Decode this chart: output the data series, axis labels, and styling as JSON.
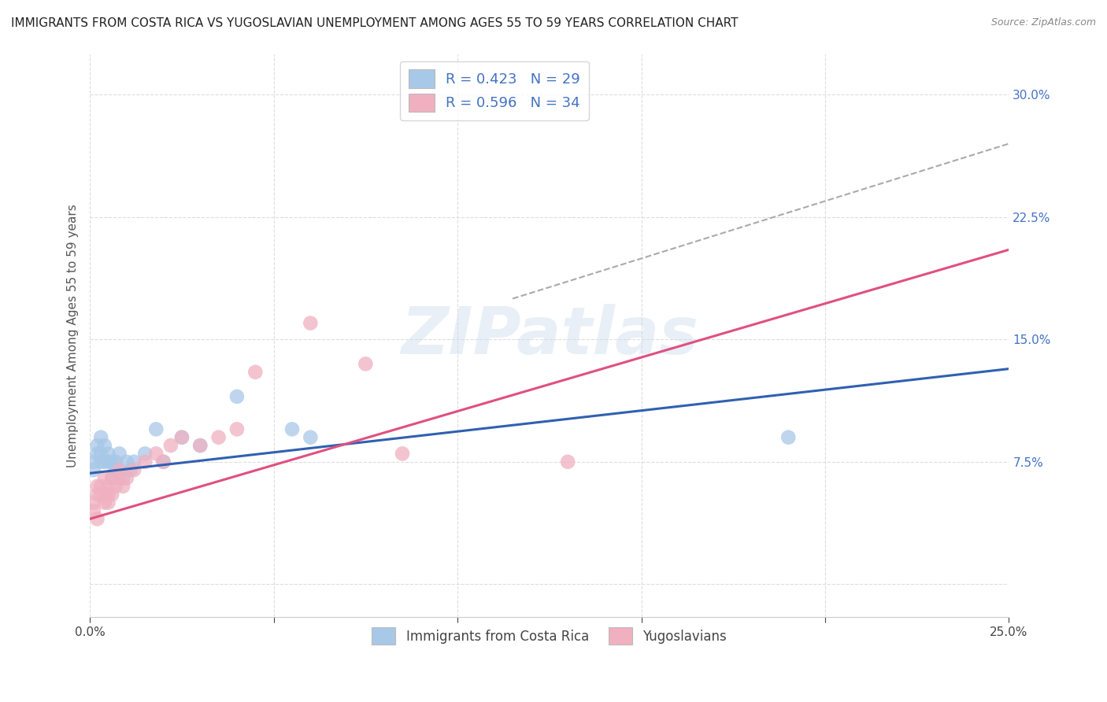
{
  "title": "IMMIGRANTS FROM COSTA RICA VS YUGOSLAVIAN UNEMPLOYMENT AMONG AGES 55 TO 59 YEARS CORRELATION CHART",
  "source": "Source: ZipAtlas.com",
  "ylabel": "Unemployment Among Ages 55 to 59 years",
  "xlim": [
    0,
    0.25
  ],
  "ylim": [
    -0.02,
    0.325
  ],
  "xticks": [
    0.0,
    0.05,
    0.1,
    0.15,
    0.2,
    0.25
  ],
  "yticks": [
    0.0,
    0.075,
    0.15,
    0.225,
    0.3
  ],
  "legend_r1": "R = 0.423",
  "legend_n1": "N = 29",
  "legend_r2": "R = 0.596",
  "legend_n2": "N = 34",
  "blue_color": "#A8C8E8",
  "pink_color": "#F0B0C0",
  "blue_line_color": "#3060B0",
  "pink_line_color": "#E05080",
  "blue_scatter_x": [
    0.001,
    0.001,
    0.002,
    0.002,
    0.003,
    0.003,
    0.003,
    0.004,
    0.004,
    0.005,
    0.005,
    0.006,
    0.006,
    0.007,
    0.007,
    0.008,
    0.009,
    0.01,
    0.011,
    0.012,
    0.015,
    0.018,
    0.02,
    0.025,
    0.03,
    0.04,
    0.055,
    0.06,
    0.19
  ],
  "blue_scatter_y": [
    0.07,
    0.075,
    0.08,
    0.085,
    0.075,
    0.08,
    0.09,
    0.075,
    0.085,
    0.075,
    0.08,
    0.065,
    0.075,
    0.07,
    0.075,
    0.08,
    0.065,
    0.075,
    0.07,
    0.075,
    0.08,
    0.095,
    0.075,
    0.09,
    0.085,
    0.115,
    0.095,
    0.09,
    0.09
  ],
  "pink_scatter_x": [
    0.001,
    0.001,
    0.002,
    0.002,
    0.002,
    0.003,
    0.003,
    0.004,
    0.004,
    0.004,
    0.005,
    0.005,
    0.005,
    0.006,
    0.006,
    0.007,
    0.008,
    0.008,
    0.009,
    0.01,
    0.012,
    0.015,
    0.018,
    0.02,
    0.022,
    0.025,
    0.03,
    0.035,
    0.04,
    0.045,
    0.06,
    0.075,
    0.085,
    0.13
  ],
  "pink_scatter_y": [
    0.045,
    0.05,
    0.04,
    0.055,
    0.06,
    0.055,
    0.06,
    0.05,
    0.055,
    0.065,
    0.05,
    0.055,
    0.06,
    0.055,
    0.065,
    0.06,
    0.065,
    0.07,
    0.06,
    0.065,
    0.07,
    0.075,
    0.08,
    0.075,
    0.085,
    0.09,
    0.085,
    0.09,
    0.095,
    0.13,
    0.16,
    0.135,
    0.08,
    0.075
  ],
  "blue_trend_x": [
    0.0,
    0.25
  ],
  "blue_trend_y": [
    0.068,
    0.132
  ],
  "pink_trend_x": [
    0.0,
    0.25
  ],
  "pink_trend_y": [
    0.04,
    0.205
  ],
  "gray_trend_x": [
    0.115,
    0.25
  ],
  "gray_trend_y": [
    0.175,
    0.27
  ],
  "background_color": "#FFFFFF",
  "grid_color": "#DDDDDD",
  "title_fontsize": 11,
  "axis_label_fontsize": 11,
  "tick_fontsize": 11,
  "legend_text_color": "#4472C4",
  "watermark_text": "ZIPatlas"
}
